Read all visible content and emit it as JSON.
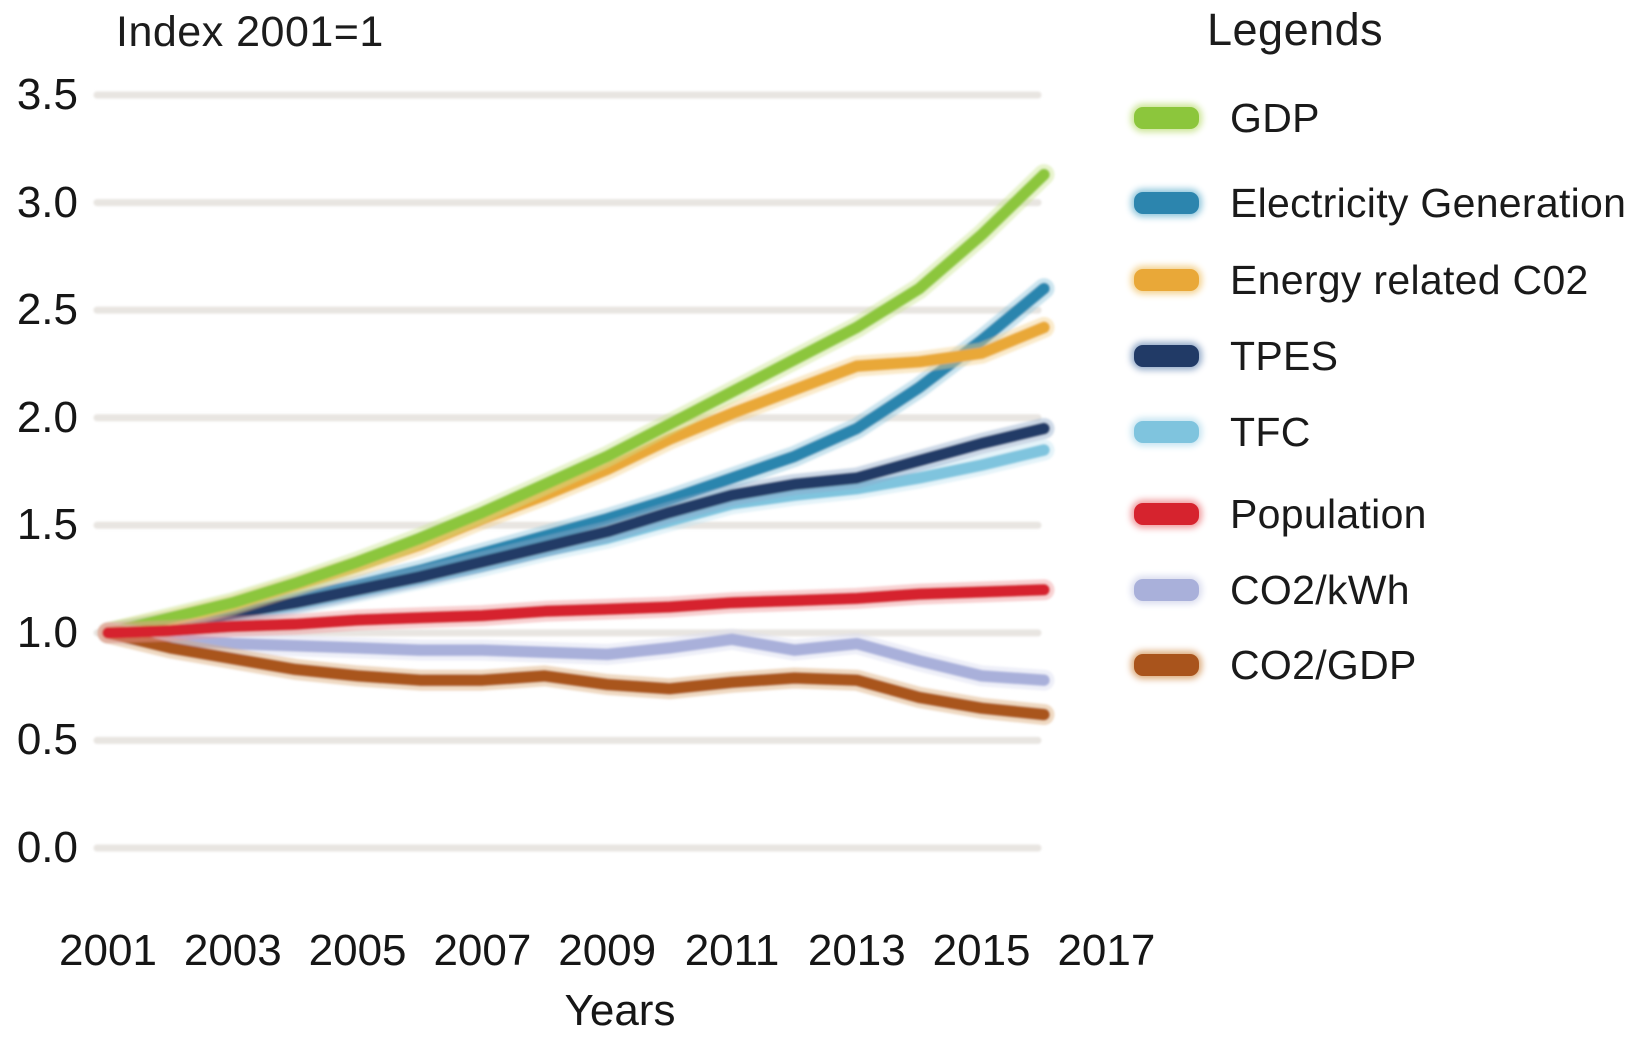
{
  "title": "Index 2001=1",
  "legend": {
    "header": "Legends"
  },
  "axes": {
    "x_label": "Years",
    "x_ticks": [
      "2001",
      "2003",
      "2005",
      "2007",
      "2009",
      "2011",
      "2013",
      "2015",
      "2017"
    ],
    "y_ticks": [
      "3.5",
      "3.0",
      "2.5",
      "2.0",
      "1.5",
      "1.0",
      "0.5",
      "0.0"
    ]
  },
  "chart_data": {
    "type": "line",
    "title": "Index 2001=1",
    "xlabel": "Years",
    "ylabel": "",
    "x": [
      2001,
      2002,
      2003,
      2004,
      2005,
      2006,
      2007,
      2008,
      2009,
      2010,
      2011,
      2012,
      2013,
      2014,
      2015,
      2016
    ],
    "xlim": [
      2001,
      2017
    ],
    "ylim": [
      0.0,
      3.5
    ],
    "y_tick_step": 0.5,
    "grid": true,
    "legend_position": "right",
    "series": [
      {
        "id": "gdp",
        "name": "GDP",
        "color": "#8cc63c",
        "halo": "#cbe593",
        "values": [
          1.0,
          1.07,
          1.14,
          1.23,
          1.33,
          1.44,
          1.56,
          1.69,
          1.82,
          1.97,
          2.12,
          2.27,
          2.42,
          2.6,
          2.85,
          3.13
        ]
      },
      {
        "id": "electricity-generation",
        "name": "Electricity Generation",
        "color": "#2c85ae",
        "halo": "#8ec6dc",
        "values": [
          1.0,
          1.05,
          1.1,
          1.16,
          1.22,
          1.29,
          1.37,
          1.45,
          1.53,
          1.62,
          1.72,
          1.82,
          1.95,
          2.14,
          2.36,
          2.6
        ]
      },
      {
        "id": "energy-related-c02",
        "name": "Energy related C02",
        "color": "#e9a838",
        "halo": "#f4d18c",
        "values": [
          1.0,
          1.06,
          1.13,
          1.22,
          1.31,
          1.41,
          1.53,
          1.64,
          1.76,
          1.9,
          2.02,
          2.13,
          2.24,
          2.26,
          2.3,
          2.42
        ]
      },
      {
        "id": "tpes",
        "name": "TPES",
        "color": "#213a66",
        "halo": "#93aac9",
        "values": [
          1.0,
          1.04,
          1.09,
          1.14,
          1.2,
          1.26,
          1.33,
          1.4,
          1.47,
          1.56,
          1.64,
          1.69,
          1.72,
          1.8,
          1.88,
          1.95
        ]
      },
      {
        "id": "tfc",
        "name": "TFC",
        "color": "#7fc4de",
        "halo": "#c4e4f1",
        "values": [
          1.0,
          1.04,
          1.08,
          1.13,
          1.19,
          1.25,
          1.31,
          1.38,
          1.44,
          1.52,
          1.6,
          1.64,
          1.67,
          1.72,
          1.78,
          1.85
        ]
      },
      {
        "id": "population",
        "name": "Population",
        "color": "#d6232e",
        "halo": "#f0999c",
        "values": [
          1.0,
          1.01,
          1.03,
          1.04,
          1.06,
          1.07,
          1.08,
          1.1,
          1.11,
          1.12,
          1.14,
          1.15,
          1.16,
          1.18,
          1.19,
          1.2
        ]
      },
      {
        "id": "co2-kwh",
        "name": "CO2/kWh",
        "color": "#a9b0da",
        "halo": "#d9dcef",
        "values": [
          1.0,
          0.97,
          0.95,
          0.94,
          0.93,
          0.92,
          0.92,
          0.91,
          0.9,
          0.93,
          0.97,
          0.92,
          0.95,
          0.87,
          0.8,
          0.78
        ]
      },
      {
        "id": "co2-gdp",
        "name": "CO2/GDP",
        "color": "#a9541c",
        "halo": "#dcaa7a",
        "values": [
          1.0,
          0.93,
          0.88,
          0.83,
          0.8,
          0.78,
          0.78,
          0.8,
          0.76,
          0.74,
          0.77,
          0.79,
          0.78,
          0.7,
          0.65,
          0.62
        ]
      }
    ],
    "gridline_color": "#e8e5e1"
  }
}
